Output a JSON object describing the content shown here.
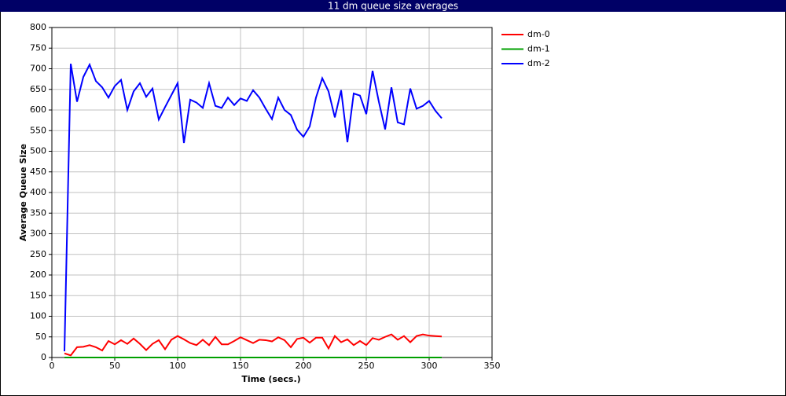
{
  "chart_data": {
    "type": "line",
    "title": "11 dm queue size averages",
    "x_label": "Time (secs.)",
    "y_label": "Average Queue Size",
    "x": [
      10,
      15,
      20,
      25,
      30,
      35,
      40,
      45,
      50,
      55,
      60,
      65,
      70,
      75,
      80,
      85,
      90,
      95,
      100,
      105,
      110,
      115,
      120,
      125,
      130,
      135,
      140,
      145,
      150,
      155,
      160,
      165,
      170,
      175,
      180,
      185,
      190,
      195,
      200,
      205,
      210,
      215,
      220,
      225,
      230,
      235,
      240,
      245,
      250,
      255,
      260,
      265,
      270,
      275,
      280,
      285,
      290,
      295,
      300,
      305,
      310
    ],
    "series": [
      {
        "name": "dm-0",
        "color": "#ff0000",
        "values": [
          10,
          5,
          25,
          26,
          30,
          25,
          17,
          40,
          32,
          42,
          33,
          46,
          33,
          18,
          33,
          42,
          20,
          43,
          52,
          44,
          35,
          30,
          43,
          30,
          50,
          32,
          32,
          40,
          49,
          42,
          35,
          43,
          42,
          39,
          49,
          42,
          25,
          45,
          48,
          36,
          48,
          48,
          22,
          52,
          37,
          44,
          30,
          40,
          30,
          47,
          43,
          50,
          56,
          43,
          52,
          37,
          52,
          56,
          53,
          52,
          51
        ]
      },
      {
        "name": "dm-1",
        "color": "#00a000",
        "values": [
          0,
          0,
          0,
          0,
          0,
          0,
          0,
          0,
          0,
          0,
          0,
          0,
          0,
          0,
          0,
          0,
          0,
          0,
          0,
          0,
          0,
          0,
          0,
          0,
          0,
          0,
          0,
          0,
          0,
          0,
          0,
          0,
          0,
          0,
          0,
          0,
          0,
          0,
          0,
          0,
          0,
          0,
          0,
          0,
          0,
          0,
          0,
          0,
          0,
          0,
          0,
          0,
          0,
          0,
          0,
          0,
          0,
          0,
          0,
          0,
          0
        ]
      },
      {
        "name": "dm-2",
        "color": "#0000ff",
        "values": [
          15,
          712,
          620,
          680,
          710,
          670,
          655,
          630,
          658,
          673,
          600,
          645,
          665,
          632,
          652,
          577,
          607,
          636,
          665,
          520,
          625,
          618,
          605,
          665,
          610,
          605,
          630,
          612,
          628,
          622,
          648,
          630,
          603,
          578,
          630,
          600,
          588,
          552,
          535,
          560,
          630,
          677,
          645,
          582,
          648,
          522,
          640,
          635,
          590,
          695,
          620,
          553,
          655,
          570,
          565,
          652,
          603,
          610,
          622,
          598,
          580
        ]
      }
    ],
    "xlim": [
      0,
      350
    ],
    "xticks": [
      0,
      50,
      100,
      150,
      200,
      250,
      300,
      350
    ],
    "ylim": [
      0,
      800
    ],
    "yticks": [
      0,
      50,
      100,
      150,
      200,
      250,
      300,
      350,
      400,
      450,
      500,
      550,
      600,
      650,
      700,
      750,
      800
    ],
    "grid": true,
    "legend": "right"
  }
}
